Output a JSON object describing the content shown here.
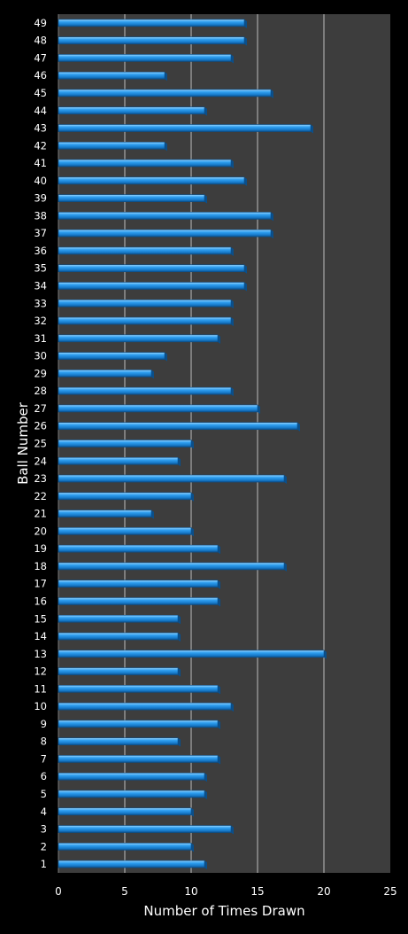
{
  "chart_data": {
    "type": "bar",
    "orientation": "horizontal",
    "title": "",
    "xlabel": "Number of Times Drawn",
    "ylabel": "Ball Number",
    "xlim": [
      0,
      25
    ],
    "xticks": [
      0,
      5,
      10,
      15,
      20,
      25
    ],
    "grid": true,
    "legend": "none",
    "colors": {
      "background": "#000000",
      "plot_area": "#3d3d3d",
      "bar": "#1a8fe0",
      "bar_edge": "#0b4f8a",
      "bar_highlight": "#8fd0ff",
      "gridline": "#bdbdbd",
      "text": "#ffffff"
    },
    "categories": [
      "1",
      "2",
      "3",
      "4",
      "5",
      "6",
      "7",
      "8",
      "9",
      "10",
      "11",
      "12",
      "13",
      "14",
      "15",
      "16",
      "17",
      "18",
      "19",
      "20",
      "21",
      "22",
      "23",
      "24",
      "25",
      "26",
      "27",
      "28",
      "29",
      "30",
      "31",
      "32",
      "33",
      "34",
      "35",
      "36",
      "37",
      "38",
      "39",
      "40",
      "41",
      "42",
      "43",
      "44",
      "45",
      "46",
      "47",
      "48",
      "49"
    ],
    "values": [
      11,
      10,
      13,
      10,
      11,
      11,
      12,
      9,
      12,
      13,
      12,
      9,
      20,
      9,
      9,
      12,
      12,
      17,
      12,
      10,
      7,
      10,
      17,
      9,
      10,
      18,
      15,
      13,
      7,
      8,
      12,
      13,
      13,
      14,
      14,
      13,
      16,
      16,
      11,
      14,
      13,
      8,
      19,
      11,
      16,
      8,
      13,
      14,
      14
    ]
  }
}
